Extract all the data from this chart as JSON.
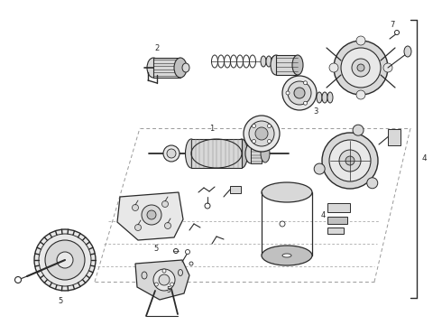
{
  "background_color": "#ffffff",
  "lc": "#2a2a2a",
  "lc2": "#444444",
  "gray1": "#c0c0c0",
  "gray2": "#d8d8d8",
  "gray3": "#e8e8e8",
  "gray4": "#b8b8b8",
  "dash_color": "#999999",
  "fig_width": 4.9,
  "fig_height": 3.6,
  "dpi": 100
}
